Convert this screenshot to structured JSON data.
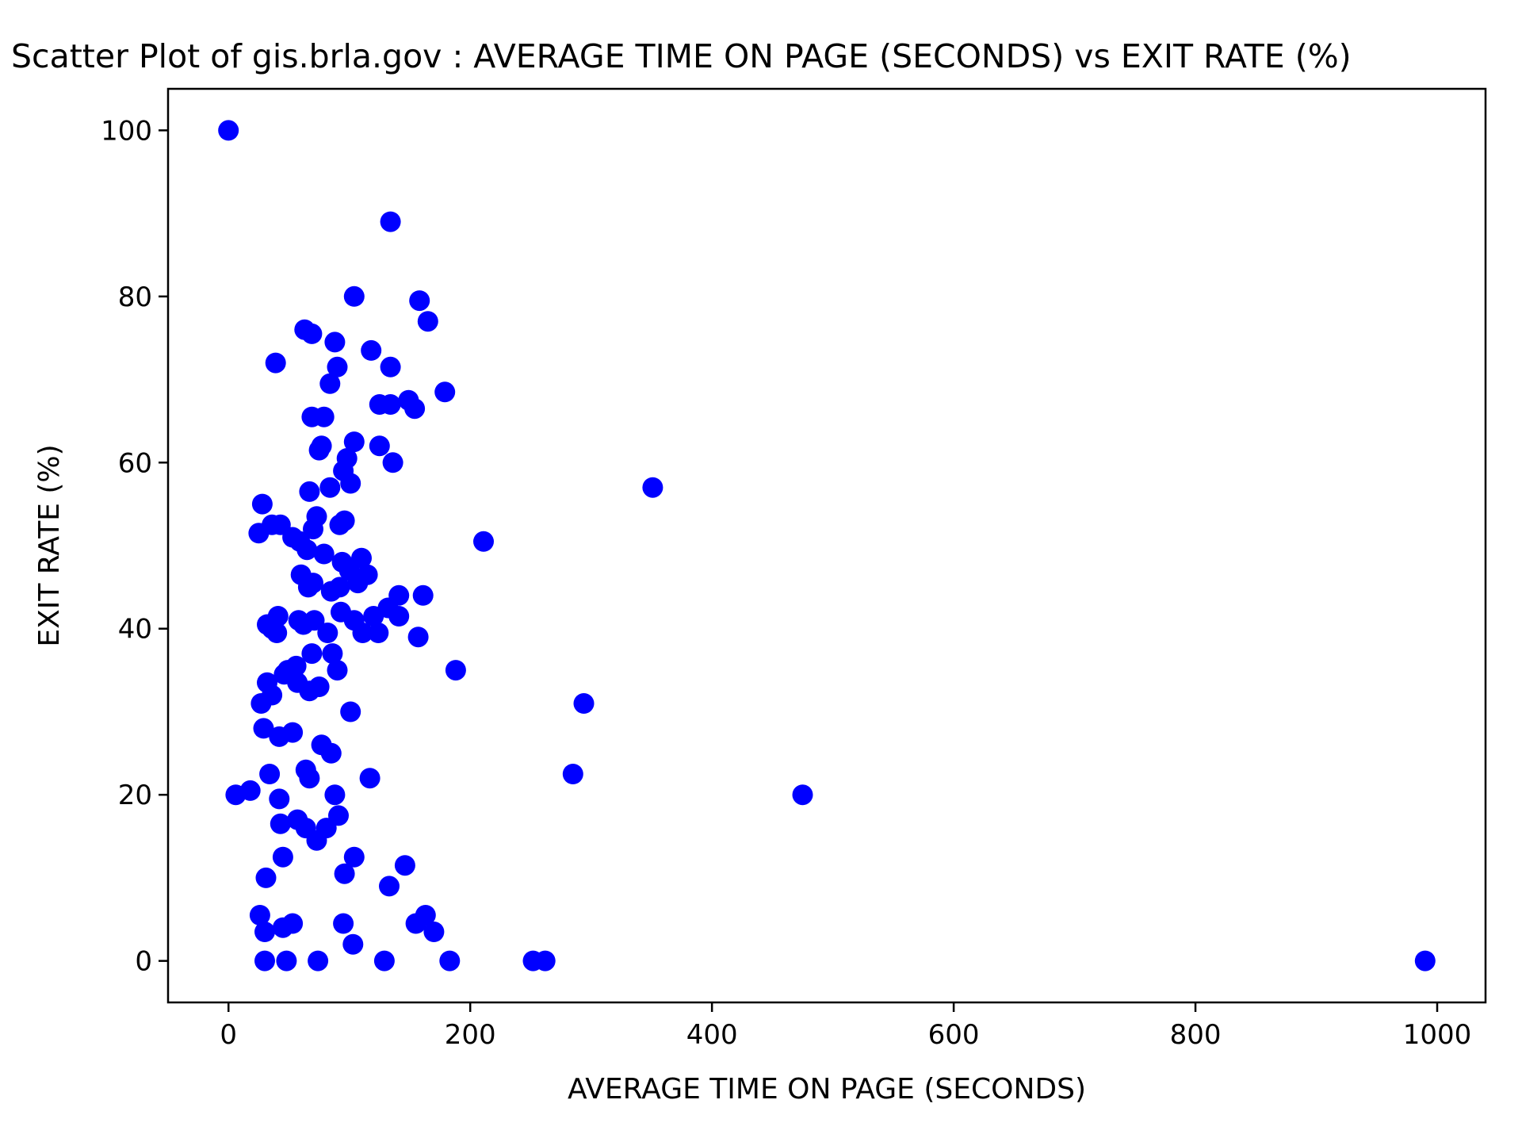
{
  "chart_data": {
    "type": "scatter",
    "title": "Scatter Plot of gis.brla.gov : AVERAGE TIME ON PAGE (SECONDS) vs EXIT RATE (%)",
    "xlabel": "AVERAGE TIME ON PAGE (SECONDS)",
    "ylabel": "EXIT RATE (%)",
    "xlim": [
      -50,
      1040
    ],
    "ylim": [
      -5,
      105
    ],
    "xticks": [
      0,
      200,
      400,
      600,
      800,
      1000
    ],
    "yticks": [
      0,
      20,
      40,
      60,
      80,
      100
    ],
    "grid": false,
    "legend": "none",
    "marker_color": "#0000ff",
    "points": [
      [
        0,
        100
      ],
      [
        134,
        89
      ],
      [
        104,
        80
      ],
      [
        158,
        79.5
      ],
      [
        165,
        77
      ],
      [
        63,
        76
      ],
      [
        69,
        75.5
      ],
      [
        88,
        74.5
      ],
      [
        118,
        73.5
      ],
      [
        39,
        72
      ],
      [
        90,
        71.5
      ],
      [
        134,
        71.5
      ],
      [
        84,
        69.5
      ],
      [
        179,
        68.5
      ],
      [
        149,
        67.5
      ],
      [
        125,
        67
      ],
      [
        134,
        67
      ],
      [
        154,
        66.5
      ],
      [
        69,
        65.5
      ],
      [
        79,
        65.5
      ],
      [
        104,
        62.5
      ],
      [
        75,
        61.5
      ],
      [
        77,
        62
      ],
      [
        125,
        62
      ],
      [
        98,
        60.5
      ],
      [
        136,
        60
      ],
      [
        95,
        59
      ],
      [
        351,
        57
      ],
      [
        84,
        57
      ],
      [
        101,
        57.5
      ],
      [
        67,
        56.5
      ],
      [
        28,
        55
      ],
      [
        73,
        53.5
      ],
      [
        96,
        53
      ],
      [
        92,
        52.5
      ],
      [
        36,
        52.5
      ],
      [
        43,
        52.5
      ],
      [
        25,
        51.5
      ],
      [
        53,
        51
      ],
      [
        70,
        52
      ],
      [
        59,
        50.5
      ],
      [
        211,
        50.5
      ],
      [
        65,
        49.5
      ],
      [
        79,
        49
      ],
      [
        110,
        48.5
      ],
      [
        94,
        48
      ],
      [
        60,
        46.5
      ],
      [
        100,
        47
      ],
      [
        115,
        46.5
      ],
      [
        70,
        45.5
      ],
      [
        107,
        45.5
      ],
      [
        66,
        45
      ],
      [
        92,
        45
      ],
      [
        85,
        44.5
      ],
      [
        141,
        44
      ],
      [
        161,
        44
      ],
      [
        93,
        42
      ],
      [
        120,
        41.5
      ],
      [
        141,
        41.5
      ],
      [
        132,
        42.5
      ],
      [
        41,
        41.5
      ],
      [
        58,
        41
      ],
      [
        71,
        41
      ],
      [
        32,
        40.5
      ],
      [
        36,
        40
      ],
      [
        62,
        40.5
      ],
      [
        104,
        41
      ],
      [
        124,
        39.5
      ],
      [
        40,
        39.5
      ],
      [
        82,
        39.5
      ],
      [
        111,
        39.5
      ],
      [
        157,
        39
      ],
      [
        86,
        37
      ],
      [
        69,
        37
      ],
      [
        49,
        35
      ],
      [
        56,
        35.5
      ],
      [
        52,
        35
      ],
      [
        46,
        34.5
      ],
      [
        90,
        35
      ],
      [
        188,
        35
      ],
      [
        57,
        33.5
      ],
      [
        75,
        33
      ],
      [
        32,
        33.5
      ],
      [
        67,
        32.5
      ],
      [
        36,
        32
      ],
      [
        27,
        31
      ],
      [
        294,
        31
      ],
      [
        101,
        30
      ],
      [
        29,
        28
      ],
      [
        53,
        27.5
      ],
      [
        42,
        27
      ],
      [
        77,
        26
      ],
      [
        85,
        25
      ],
      [
        34,
        22.5
      ],
      [
        64,
        23
      ],
      [
        67,
        22
      ],
      [
        117,
        22
      ],
      [
        285,
        22.5
      ],
      [
        6,
        20
      ],
      [
        18,
        20.5
      ],
      [
        42,
        19.5
      ],
      [
        88,
        20
      ],
      [
        475,
        20
      ],
      [
        91,
        17.5
      ],
      [
        57,
        17
      ],
      [
        43,
        16.5
      ],
      [
        64,
        16
      ],
      [
        81,
        16
      ],
      [
        73,
        14.5
      ],
      [
        45,
        12.5
      ],
      [
        104,
        12.5
      ],
      [
        146,
        11.5
      ],
      [
        31,
        10
      ],
      [
        96,
        10.5
      ],
      [
        133,
        9
      ],
      [
        26,
        5.5
      ],
      [
        163,
        5.5
      ],
      [
        155,
        4.5
      ],
      [
        53,
        4.5
      ],
      [
        95,
        4.5
      ],
      [
        45,
        4
      ],
      [
        30,
        3.5
      ],
      [
        170,
        3.5
      ],
      [
        103,
        2
      ],
      [
        30,
        0
      ],
      [
        48,
        0
      ],
      [
        74,
        0
      ],
      [
        129,
        0
      ],
      [
        183,
        0
      ],
      [
        252,
        0
      ],
      [
        262,
        0
      ],
      [
        990,
        0
      ]
    ]
  }
}
